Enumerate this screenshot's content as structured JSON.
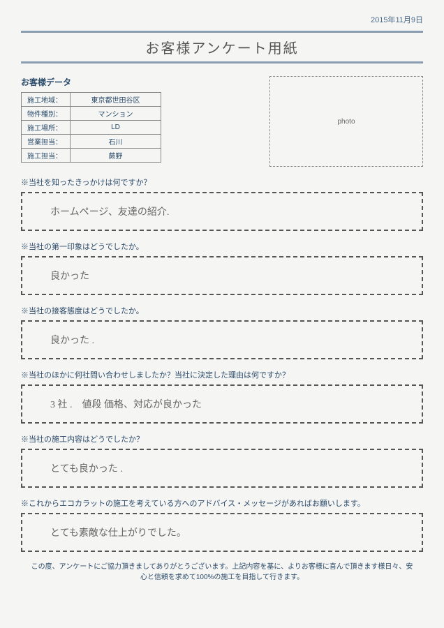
{
  "date": "2015年11月9日",
  "title": "お客様アンケート用紙",
  "customer_data_heading": "お客様データ",
  "data_rows": [
    {
      "label": "施工地域：",
      "value": "東京都世田谷区"
    },
    {
      "label": "物件種別：",
      "value": "マンション"
    },
    {
      "label": "施工場所：",
      "value": "LD"
    },
    {
      "label": "営業担当：",
      "value": "石川"
    },
    {
      "label": "施工担当：",
      "value": "蕨野"
    }
  ],
  "photo_label": "photo",
  "questions": [
    {
      "q": "※当社を知ったきっかけは何ですか？",
      "a": "ホームページ、友達の紹介."
    },
    {
      "q": "※当社の第一印象はどうでしたか。",
      "a": "良かった"
    },
    {
      "q": "※当社の接客態度はどうでしたか。",
      "a": "良かった ."
    },
    {
      "q": "※当社のほかに何社問い合わせしましたか？当社に決定した理由は何ですか？",
      "a": "3 社 .　値段 価格、対応が良かった"
    },
    {
      "q": "※当社の施工内容はどうでしたか？",
      "a": "とても良かった ."
    },
    {
      "q": "※これからエコカラットの施工を考えている方へのアドバイス・メッセージがあればお願いします。",
      "a": "とても素敵な仕上がりでした。"
    }
  ],
  "footer": "この度、アンケートにご協力頂きましてありがとうございます。上記内容を基に、よりお客様に喜んで頂きます様日々、安心と信頼を求めて100%の施工を目指して行きます。"
}
